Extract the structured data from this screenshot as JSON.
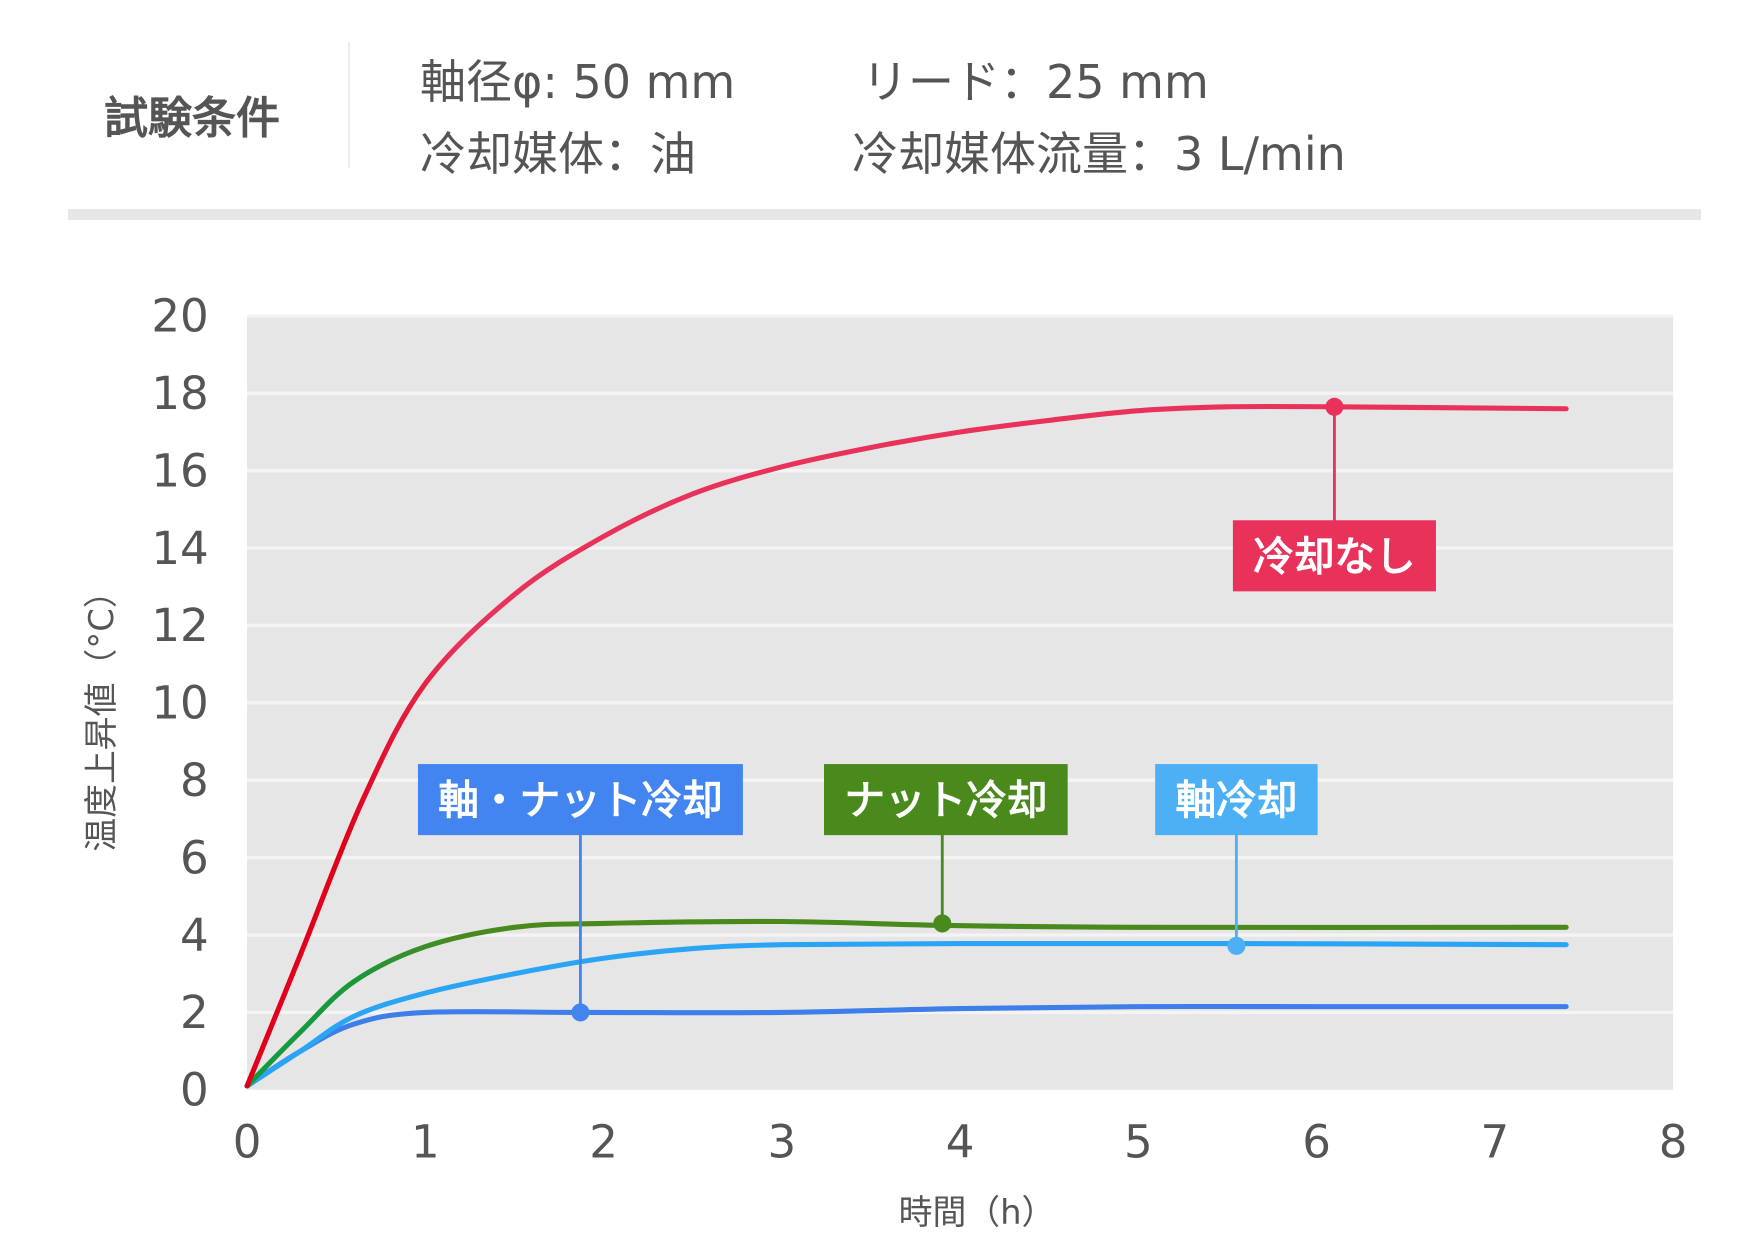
{
  "header": {
    "title": "試験条件",
    "conditions": [
      "軸径φ: 50 mm",
      "リード：25 mm",
      "冷却媒体：油",
      "冷却媒体流量：3 L/min"
    ]
  },
  "chart_data": {
    "type": "line",
    "xlabel": "時間（h）",
    "ylabel": "温度上昇値（°C）",
    "xlim": [
      0,
      8
    ],
    "ylim": [
      0,
      20
    ],
    "xticks": [
      "0",
      "1",
      "2",
      "3",
      "4",
      "5",
      "6",
      "7",
      "8"
    ],
    "yticks": [
      "0",
      "2",
      "4",
      "6",
      "8",
      "10",
      "12",
      "14",
      "16",
      "18",
      "20"
    ],
    "grid": true,
    "background": "#e6e6e6",
    "series": [
      {
        "name": "冷却なし",
        "color": "#e8325a",
        "start_color": "#e0001b",
        "x": [
          0,
          0.3,
          0.65,
          1,
          1.5,
          2,
          2.5,
          3,
          3.5,
          4,
          4.5,
          5,
          5.5,
          6.1,
          7.4
        ],
        "y": [
          0.1,
          3.5,
          7.5,
          10.5,
          12.8,
          14.3,
          15.4,
          16.1,
          16.6,
          17.0,
          17.3,
          17.55,
          17.65,
          17.65,
          17.6
        ],
        "marker": [
          6.1,
          17.65
        ],
        "label_at": [
          6.1,
          13.8
        ]
      },
      {
        "name": "ナット冷却",
        "color": "#4a8a1c",
        "start_color": "#159a3c",
        "x": [
          0,
          0.3,
          0.6,
          1,
          1.5,
          2,
          3,
          3.9,
          5,
          7.4
        ],
        "y": [
          0.1,
          1.5,
          2.8,
          3.7,
          4.2,
          4.3,
          4.35,
          4.25,
          4.2,
          4.2
        ],
        "marker": [
          3.9,
          4.3
        ],
        "label_at": [
          3.92,
          7.5
        ]
      },
      {
        "name": "軸冷却",
        "color": "#2aa5f5",
        "label_color": "#4db0f5",
        "x": [
          0,
          0.3,
          0.6,
          1,
          1.5,
          2,
          2.5,
          3,
          4,
          5.55,
          7.4
        ],
        "y": [
          0.1,
          1.0,
          1.9,
          2.5,
          3.0,
          3.4,
          3.65,
          3.75,
          3.78,
          3.78,
          3.75
        ],
        "marker": [
          5.55,
          3.72
        ],
        "label_at": [
          5.55,
          7.5
        ]
      },
      {
        "name": "軸・ナット冷却",
        "color": "#3d7ee8",
        "label_color": "#4285f0",
        "x": [
          0,
          0.3,
          0.6,
          1,
          1.9,
          3,
          4,
          5,
          6,
          7.4
        ],
        "y": [
          0.1,
          1.0,
          1.7,
          2.0,
          2.0,
          2.0,
          2.1,
          2.15,
          2.15,
          2.15
        ],
        "marker": [
          1.87,
          2.0
        ],
        "label_at": [
          1.87,
          7.5
        ]
      }
    ]
  }
}
